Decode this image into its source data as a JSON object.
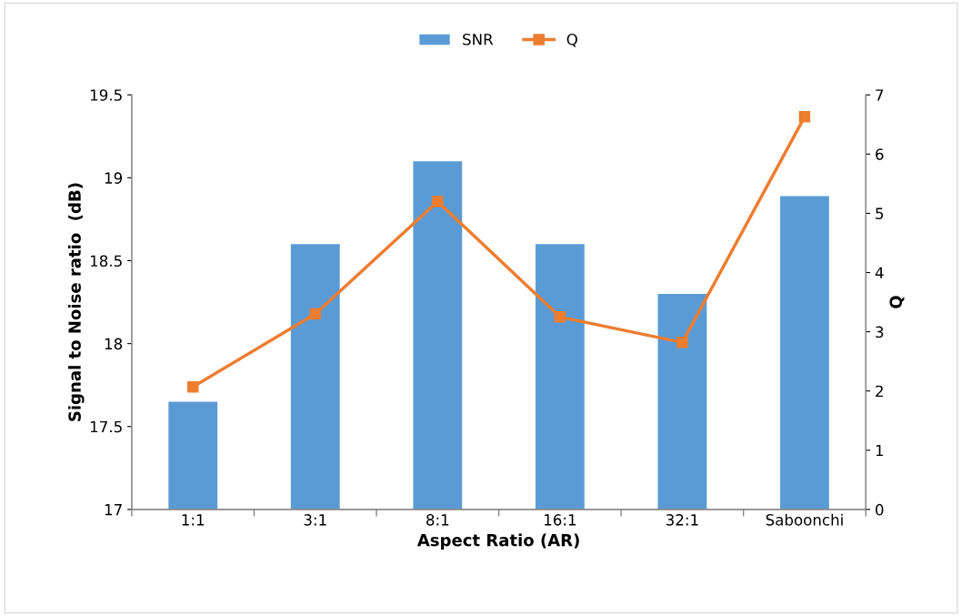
{
  "chart_data": {
    "type": "bar",
    "xlabel": "Aspect Ratio (AR)",
    "ylabel": "Signal to Noise ratio  (dB)",
    "y2label": "Q",
    "categories": [
      "1:1",
      "3:1",
      "8:1",
      "16:1",
      "32:1",
      "Saboonchi"
    ],
    "series": [
      {
        "name": "SNR",
        "color": "#5b9bd5",
        "values": [
          17.65,
          18.6,
          19.1,
          18.6,
          18.3,
          18.89
        ]
      },
      {
        "name": "Q",
        "type": "line",
        "axis": "y2",
        "color": "#ed7d31",
        "marker": "square",
        "values": [
          2.07,
          3.3,
          5.2,
          3.25,
          2.82,
          6.63
        ]
      }
    ],
    "ylim": [
      17,
      19.5
    ],
    "yticks": [
      17,
      17.5,
      18,
      18.5,
      19,
      19.5
    ],
    "y2lim": [
      0,
      7
    ],
    "y2ticks": [
      0,
      1,
      2,
      3,
      4,
      5,
      6,
      7
    ],
    "grid": false,
    "legend": "top"
  }
}
